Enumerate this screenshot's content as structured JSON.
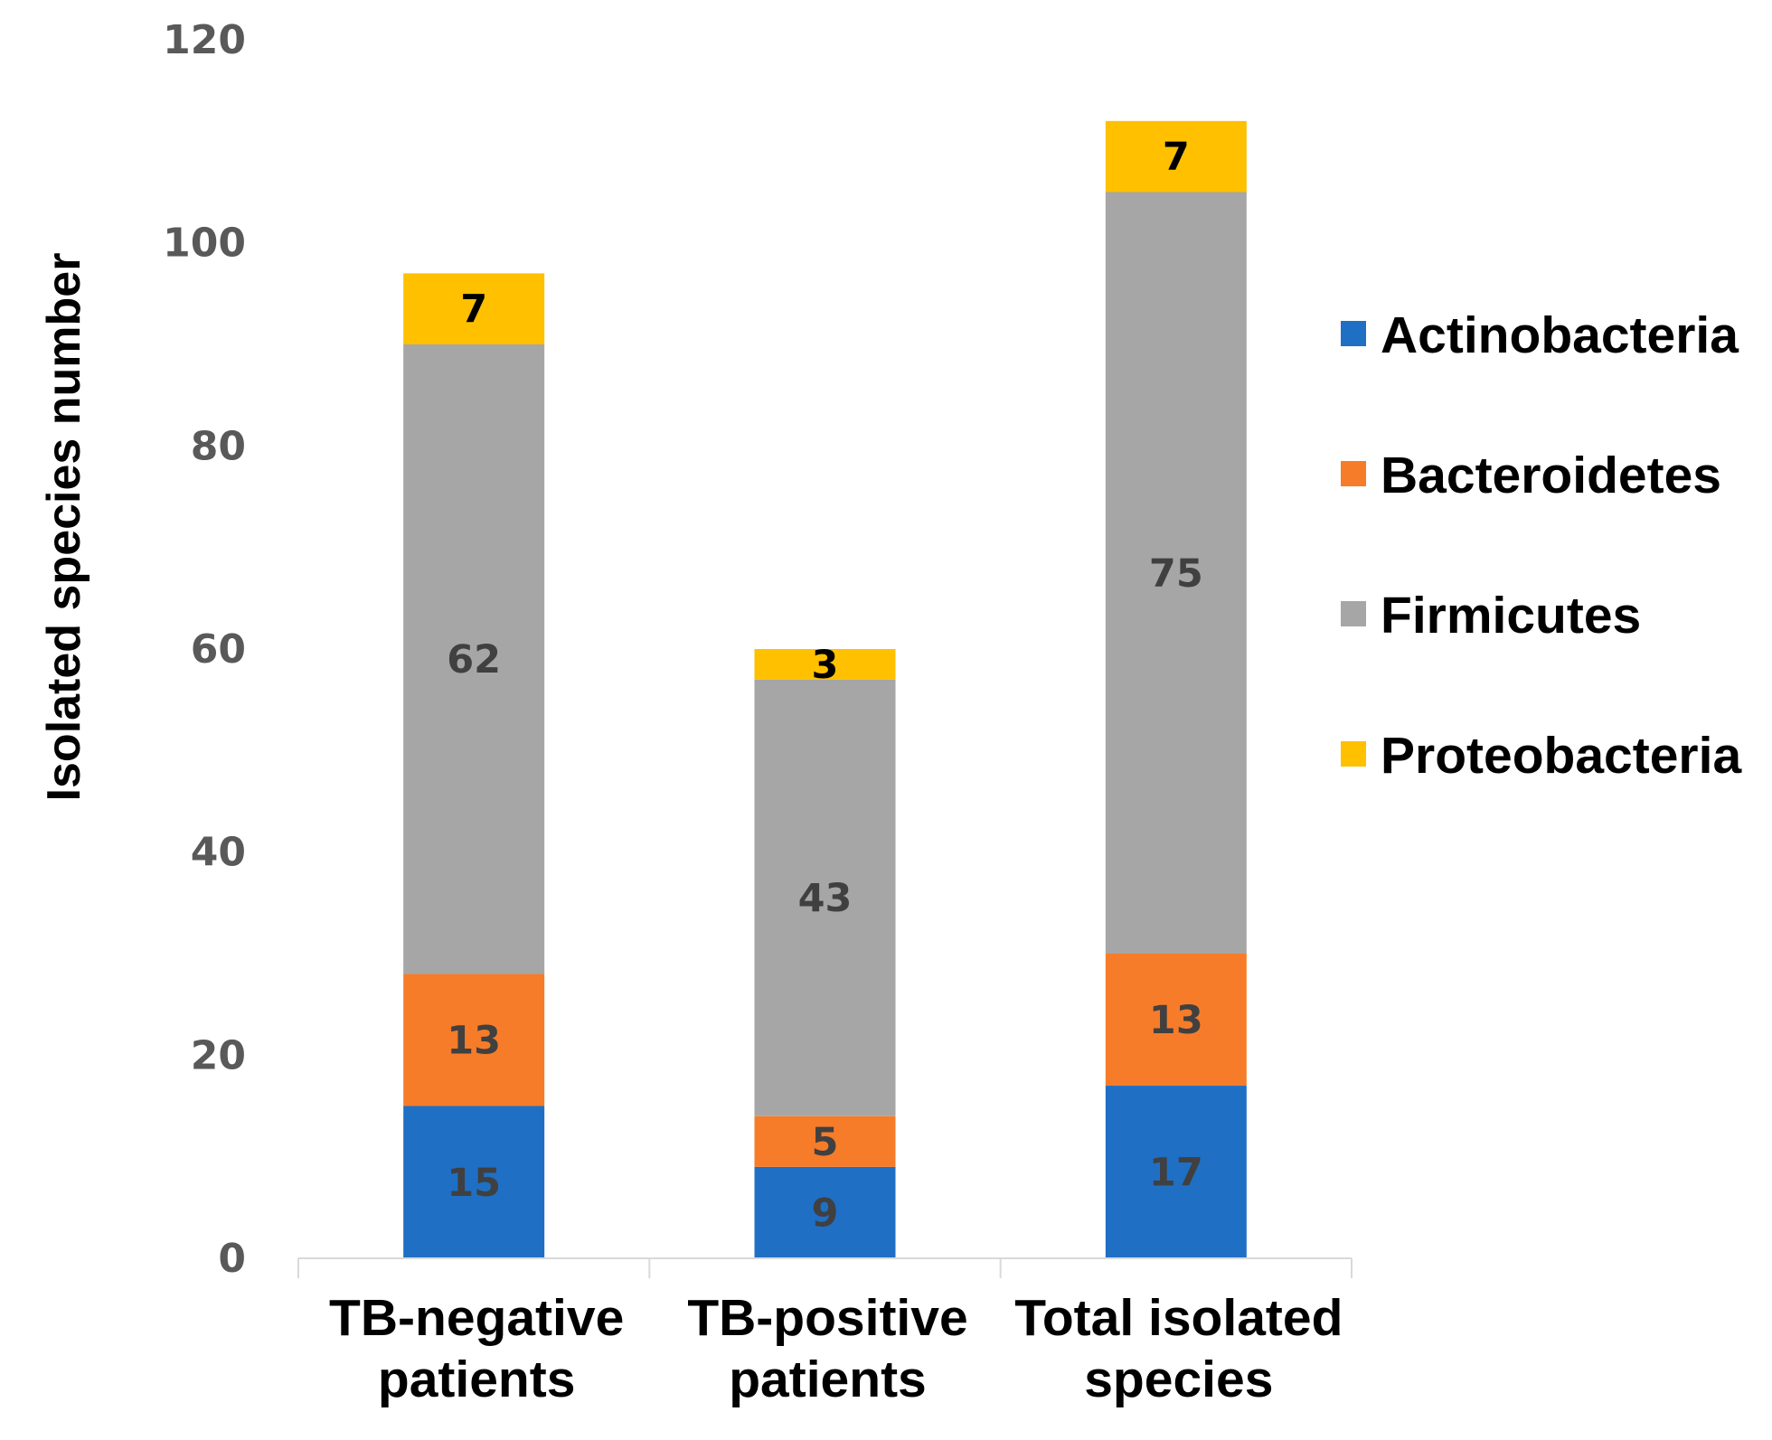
{
  "chart_data": {
    "type": "bar",
    "stacked": true,
    "title": "",
    "xlabel": "",
    "ylabel": "Isolated species number",
    "ylim": [
      0,
      120
    ],
    "yticks": [
      "0",
      "20",
      "40",
      "60",
      "80",
      "100",
      "120"
    ],
    "categories": [
      [
        "TB-negative",
        "patients"
      ],
      [
        "TB-positive",
        "patients"
      ],
      [
        "Total isolated",
        "species"
      ]
    ],
    "series": [
      {
        "name": "Actinobacteria",
        "color": "#1f6fc5",
        "label_color": "#404040",
        "values": [
          15,
          9,
          17
        ]
      },
      {
        "name": "Bacteroidetes",
        "color": "#f67c2a",
        "label_color": "#404040",
        "values": [
          13,
          5,
          13
        ]
      },
      {
        "name": "Firmicutes",
        "color": "#a6a6a6",
        "label_color": "#404040",
        "values": [
          62,
          43,
          75
        ]
      },
      {
        "name": "Proteobacteria",
        "color": "#ffc000",
        "label_color": "#000000",
        "values": [
          7,
          3,
          7
        ]
      }
    ],
    "legend_position": "right",
    "axis_color": "#d9d9d9"
  }
}
